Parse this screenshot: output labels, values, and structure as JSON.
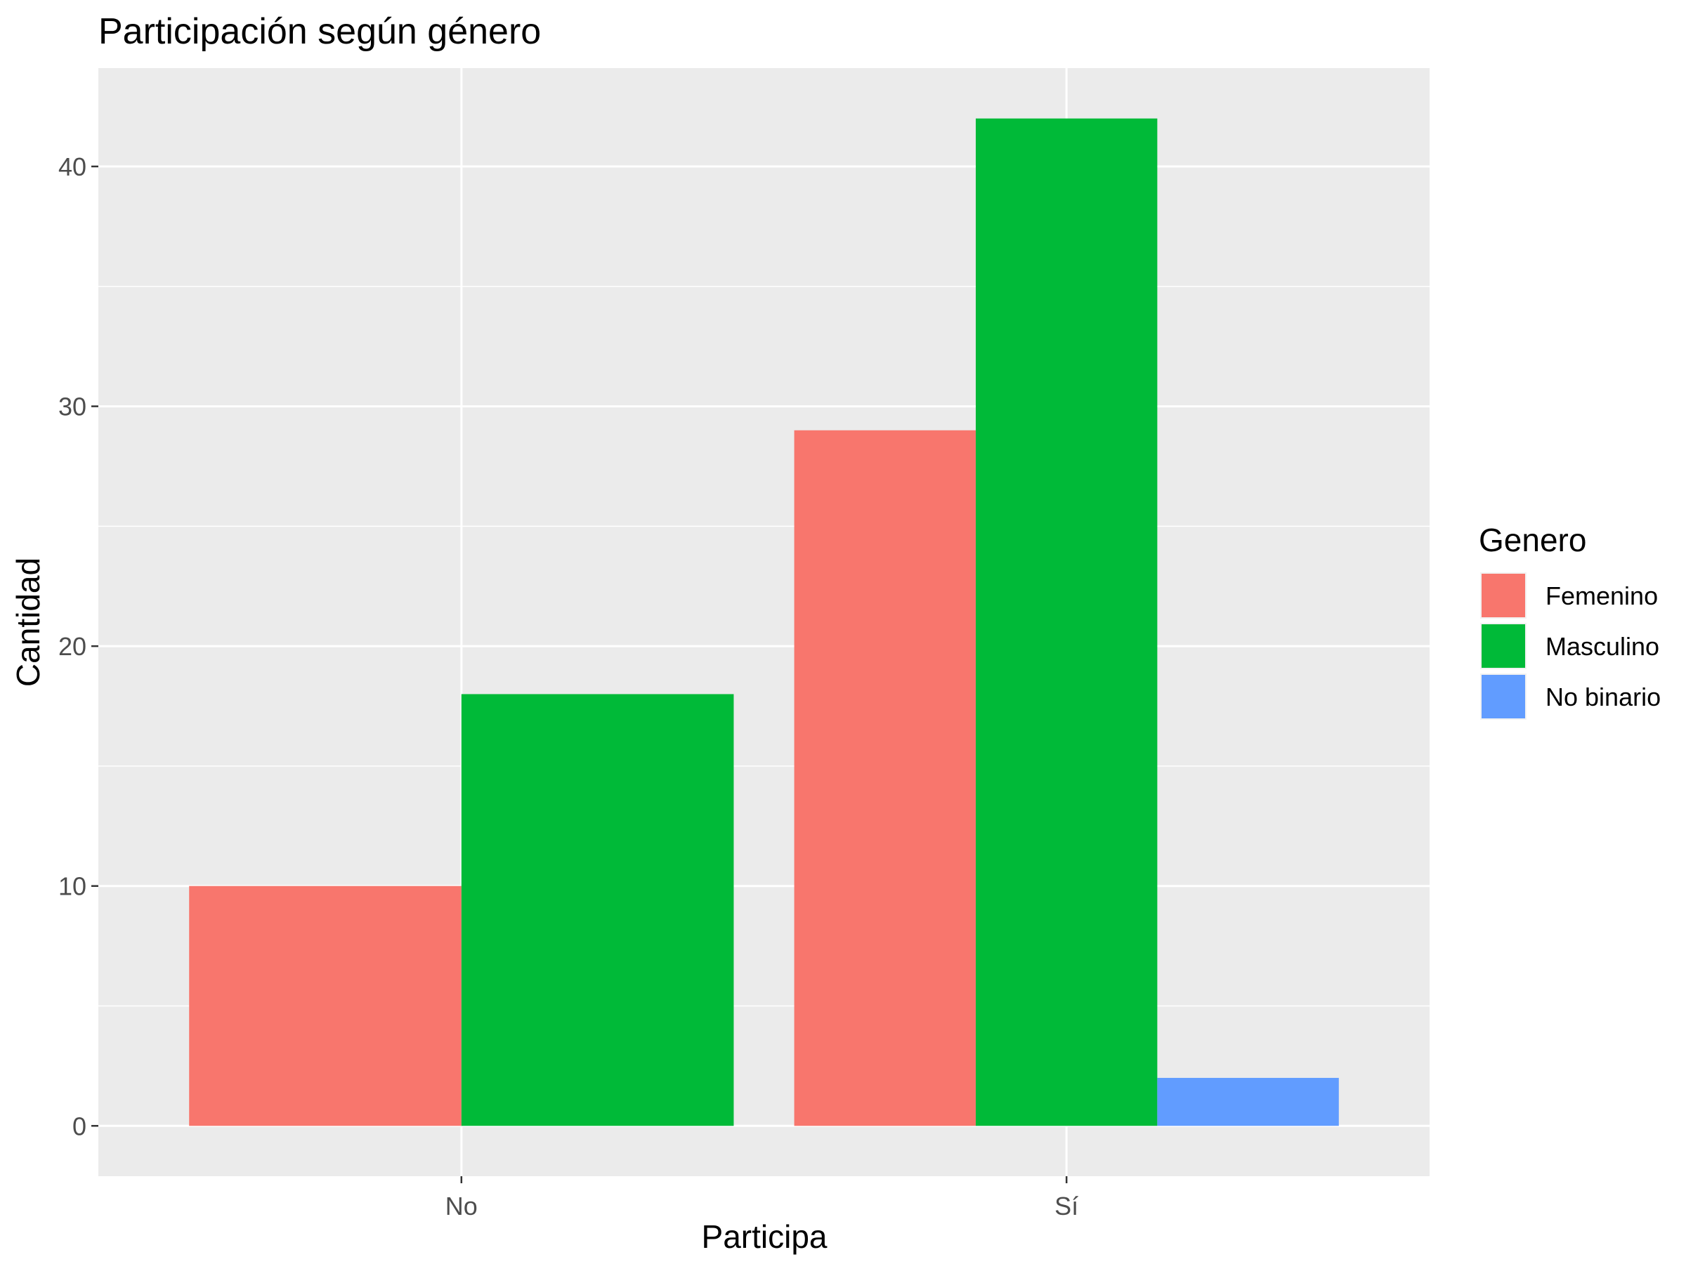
{
  "chart_data": {
    "type": "bar",
    "title": "Participación según género",
    "xlabel": "Participa",
    "ylabel": "Cantidad",
    "categories": [
      "No",
      "Sí"
    ],
    "series": [
      {
        "name": "Femenino",
        "color": "#F8766D",
        "values": [
          10,
          29
        ]
      },
      {
        "name": "Masculino",
        "color": "#00BA38",
        "values": [
          18,
          42
        ]
      },
      {
        "name": "No binario",
        "color": "#619CFF",
        "values": [
          null,
          2
        ]
      }
    ],
    "yticks": [
      0,
      10,
      20,
      30,
      40
    ],
    "ylim": [
      -2.1,
      44.1
    ],
    "grid": true,
    "legend": {
      "title": "Genero",
      "placement": "right"
    },
    "panel_background": "#EBEBEB"
  }
}
